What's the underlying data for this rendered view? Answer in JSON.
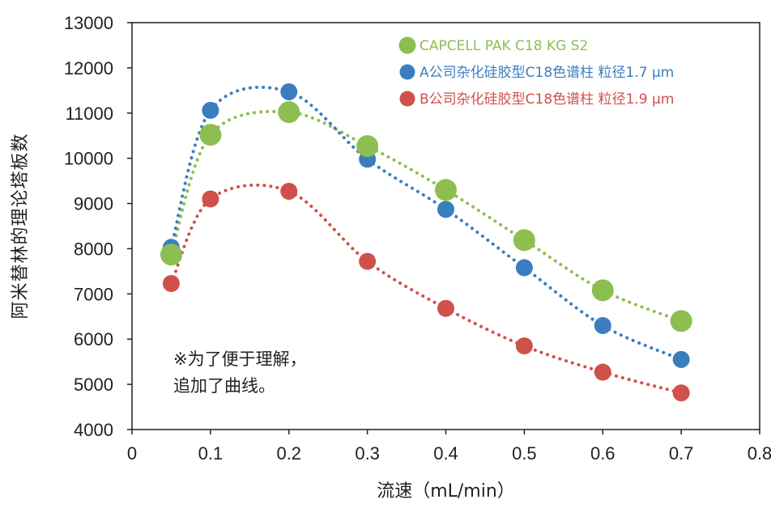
{
  "chart_data": {
    "type": "scatter",
    "xlabel": "流速（mL/min）",
    "ylabel": "阿米替林的理论塔板数",
    "xlim": [
      0,
      0.8
    ],
    "ylim": [
      4000,
      13000
    ],
    "x_ticks": [
      "0",
      "0.1",
      "0.2",
      "0.3",
      "0.4",
      "0.5",
      "0.6",
      "0.7",
      "0.8"
    ],
    "y_ticks": [
      "4000",
      "5000",
      "6000",
      "7000",
      "8000",
      "9000",
      "10000",
      "11000",
      "12000",
      "13000"
    ],
    "grid": false,
    "legend_position": "top-right",
    "trend_lines": "dotted",
    "series": [
      {
        "name": "CAPCELL PAK C18 KG S2",
        "color": "#8cbf4f",
        "x": [
          0.05,
          0.1,
          0.2,
          0.3,
          0.4,
          0.5,
          0.6,
          0.7
        ],
        "y": [
          7870,
          10520,
          11020,
          10270,
          9300,
          8190,
          7080,
          6400
        ]
      },
      {
        "name": "A公司杂化硅胶型C18色谱柱 粒径1.7 µm",
        "color": "#3a7ebf",
        "x": [
          0.05,
          0.1,
          0.2,
          0.3,
          0.4,
          0.5,
          0.6,
          0.7
        ],
        "y": [
          8030,
          11060,
          11470,
          9980,
          8870,
          7580,
          6300,
          5550
        ]
      },
      {
        "name": "B公司杂化硅胶型C18色谱柱 粒径1.9 µm",
        "color": "#d0504a",
        "x": [
          0.05,
          0.1,
          0.2,
          0.3,
          0.4,
          0.5,
          0.6,
          0.7
        ],
        "y": [
          7230,
          9100,
          9270,
          7720,
          6680,
          5850,
          5270,
          4810
        ]
      }
    ],
    "annotation": [
      "※为了便于理解，",
      "追加了曲线。"
    ]
  }
}
